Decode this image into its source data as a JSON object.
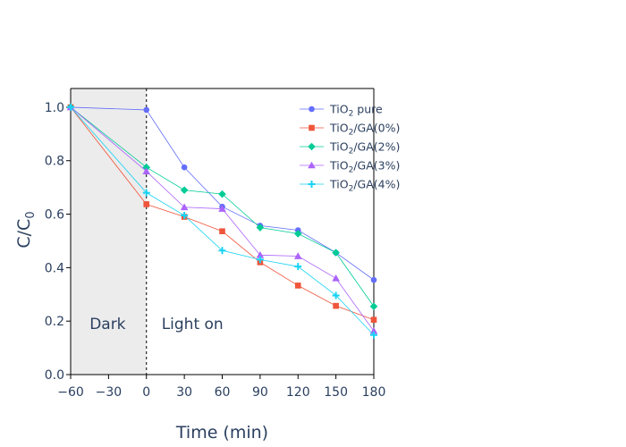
{
  "chart_data": {
    "type": "line",
    "x": [
      -60,
      0,
      30,
      60,
      90,
      120,
      150,
      180
    ],
    "xlabel": "Time (min)",
    "ylabel": "C/C",
    "ylabel_sub": "0",
    "xlim": [
      -60,
      180
    ],
    "ylim": [
      0,
      1.07
    ],
    "xticks": [
      -60,
      -30,
      0,
      30,
      60,
      90,
      120,
      150,
      180
    ],
    "xtick_labels": [
      "−60",
      "−30",
      "0",
      "30",
      "60",
      "90",
      "120",
      "150",
      "180"
    ],
    "yticks": [
      0,
      0.2,
      0.4,
      0.6,
      0.8,
      1.0
    ],
    "ytick_labels": [
      "0.0",
      "0.2",
      "0.4",
      "0.6",
      "0.8",
      "1.0"
    ],
    "grid": false,
    "legend_position": "top-right",
    "shaded_region": {
      "x": [
        -60,
        0
      ],
      "color": "#ececec"
    },
    "divider_x": 0,
    "annotations": [
      {
        "text": "Dark",
        "x": -45,
        "y": 0.17
      },
      {
        "text": "Light on",
        "x": 12,
        "y": 0.17
      }
    ],
    "series": [
      {
        "name": "TiO₂ pure",
        "legend_main": "TiO",
        "legend_sub": "2",
        "legend_rest": " pure",
        "color": "#636efa",
        "marker": "circle",
        "values": [
          1.0,
          0.99,
          0.775,
          0.628,
          0.557,
          0.54,
          0.456,
          0.354
        ]
      },
      {
        "name": "TiO₂/GA(0%)",
        "legend_main": "TiO",
        "legend_sub": "2",
        "legend_rest": "/GA(0%)",
        "color": "#ef553b",
        "marker": "square",
        "values": [
          1.0,
          0.637,
          0.59,
          0.536,
          0.42,
          0.333,
          0.257,
          0.205
        ]
      },
      {
        "name": "TiO₂/GA(2%)",
        "legend_main": "TiO",
        "legend_sub": "2",
        "legend_rest": "/GA(2%)",
        "color": "#00cc96",
        "marker": "diamond",
        "values": [
          1.0,
          0.775,
          0.69,
          0.675,
          0.55,
          0.527,
          0.456,
          0.255
        ]
      },
      {
        "name": "TiO₂/GA(3%)",
        "legend_main": "TiO",
        "legend_sub": "2",
        "legend_rest": "/GA(3%)",
        "color": "#ab63fa",
        "marker": "triangle-up",
        "values": [
          1.0,
          0.76,
          0.626,
          0.62,
          0.447,
          0.443,
          0.36,
          0.163
        ]
      },
      {
        "name": "TiO₂/GA(4%)",
        "legend_main": "TiO",
        "legend_sub": "2",
        "legend_rest": "/GA(4%)",
        "color": "#19d3f3",
        "marker": "cross",
        "values": [
          1.0,
          0.68,
          0.595,
          0.464,
          0.43,
          0.404,
          0.296,
          0.148
        ]
      }
    ]
  }
}
